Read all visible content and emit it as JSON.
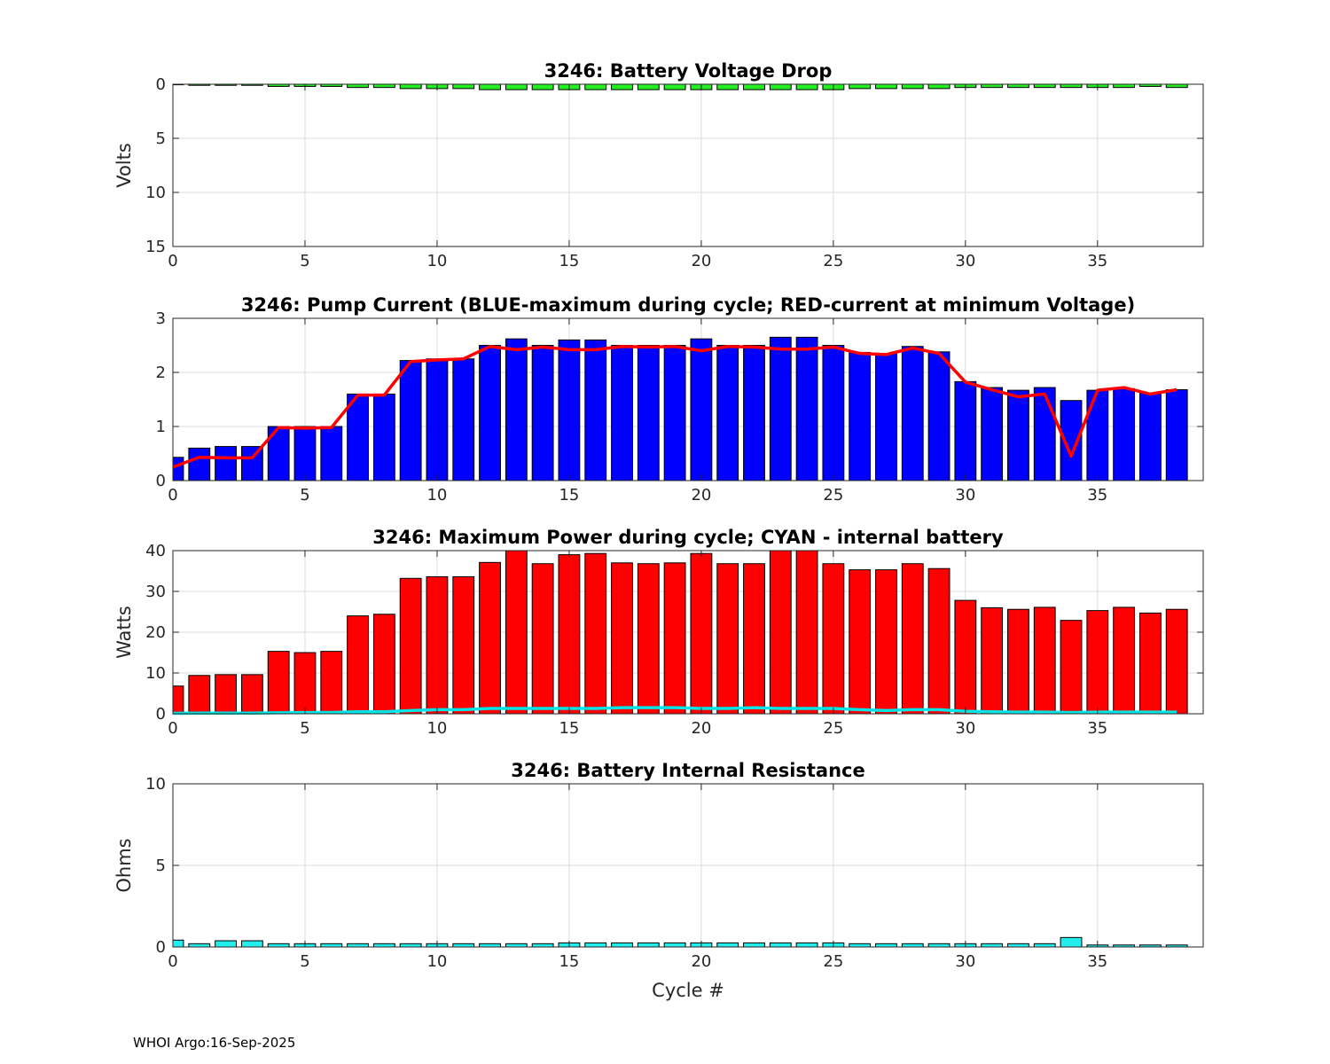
{
  "footer": "WHOI Argo:16-Sep-2025",
  "chart_data": [
    {
      "id": "voltage",
      "type": "bar",
      "title": "3246: Battery Voltage Drop",
      "ylabel": "Volts",
      "xlabel": "",
      "xlim": [
        0,
        39
      ],
      "ylim": [
        0,
        15
      ],
      "y_reversed": true,
      "xticks": [
        0,
        5,
        10,
        15,
        20,
        25,
        30,
        35
      ],
      "yticks": [
        0,
        5,
        10,
        15
      ],
      "grid": true,
      "bar_color": "#22ee22",
      "x": [
        0,
        1,
        2,
        3,
        4,
        5,
        6,
        7,
        8,
        9,
        10,
        11,
        12,
        13,
        14,
        15,
        16,
        17,
        18,
        19,
        20,
        21,
        22,
        23,
        24,
        25,
        26,
        27,
        28,
        29,
        30,
        31,
        32,
        33,
        34,
        35,
        36,
        37,
        38
      ],
      "values": [
        0.05,
        0.1,
        0.1,
        0.1,
        0.2,
        0.2,
        0.2,
        0.3,
        0.3,
        0.4,
        0.4,
        0.4,
        0.5,
        0.5,
        0.5,
        0.5,
        0.5,
        0.5,
        0.5,
        0.5,
        0.5,
        0.5,
        0.5,
        0.5,
        0.5,
        0.5,
        0.4,
        0.4,
        0.4,
        0.4,
        0.3,
        0.3,
        0.3,
        0.3,
        0.3,
        0.3,
        0.3,
        0.2,
        0.3
      ]
    },
    {
      "id": "current",
      "type": "bar",
      "title": "3246: Pump Current (BLUE-maximum during cycle; RED-current at minimum Voltage)",
      "ylabel": "",
      "xlabel": "",
      "xlim": [
        0,
        39
      ],
      "ylim": [
        0,
        3
      ],
      "xticks": [
        0,
        5,
        10,
        15,
        20,
        25,
        30,
        35
      ],
      "yticks": [
        0,
        1,
        2,
        3
      ],
      "grid": true,
      "bar_color": "#0000ff",
      "line_color": "#ff0000",
      "x": [
        0,
        1,
        2,
        3,
        4,
        5,
        6,
        7,
        8,
        9,
        10,
        11,
        12,
        13,
        14,
        15,
        16,
        17,
        18,
        19,
        20,
        21,
        22,
        23,
        24,
        25,
        26,
        27,
        28,
        29,
        30,
        31,
        32,
        33,
        34,
        35,
        36,
        37,
        38
      ],
      "values": [
        0.43,
        0.6,
        0.63,
        0.63,
        1.0,
        1.0,
        1.0,
        1.6,
        1.6,
        2.22,
        2.25,
        2.25,
        2.5,
        2.62,
        2.5,
        2.6,
        2.6,
        2.5,
        2.5,
        2.5,
        2.62,
        2.5,
        2.5,
        2.65,
        2.65,
        2.5,
        2.37,
        2.35,
        2.48,
        2.38,
        1.83,
        1.72,
        1.67,
        1.72,
        1.48,
        1.67,
        1.7,
        1.62,
        1.68
      ],
      "line_values": [
        0.25,
        0.43,
        0.42,
        0.42,
        0.98,
        0.97,
        0.98,
        1.58,
        1.58,
        2.2,
        2.23,
        2.25,
        2.48,
        2.42,
        2.47,
        2.42,
        2.42,
        2.48,
        2.47,
        2.48,
        2.4,
        2.48,
        2.47,
        2.43,
        2.43,
        2.47,
        2.35,
        2.33,
        2.45,
        2.35,
        1.82,
        1.68,
        1.55,
        1.6,
        0.45,
        1.67,
        1.72,
        1.6,
        1.68
      ]
    },
    {
      "id": "power",
      "type": "bar",
      "title": "3246: Maximum Power during cycle; CYAN - internal battery",
      "ylabel": "Watts",
      "xlabel": "",
      "xlim": [
        0,
        39
      ],
      "ylim": [
        0,
        40
      ],
      "xticks": [
        0,
        5,
        10,
        15,
        20,
        25,
        30,
        35
      ],
      "yticks": [
        0,
        10,
        20,
        30,
        40
      ],
      "grid": true,
      "bar_color": "#ff0000",
      "line_color": "#00e5e5",
      "x": [
        0,
        1,
        2,
        3,
        4,
        5,
        6,
        7,
        8,
        9,
        10,
        11,
        12,
        13,
        14,
        15,
        16,
        17,
        18,
        19,
        20,
        21,
        22,
        23,
        24,
        25,
        26,
        27,
        28,
        29,
        30,
        31,
        32,
        33,
        34,
        35,
        36,
        37,
        38
      ],
      "values": [
        6.8,
        9.4,
        9.6,
        9.6,
        15.3,
        15.0,
        15.3,
        24.0,
        24.4,
        33.2,
        33.6,
        33.6,
        37.1,
        40.0,
        36.8,
        39.0,
        39.3,
        37.0,
        36.8,
        37.0,
        39.3,
        36.8,
        36.8,
        40.0,
        40.0,
        36.8,
        35.3,
        35.3,
        36.8,
        35.6,
        27.8,
        26.0,
        25.6,
        26.1,
        22.9,
        25.3,
        26.1,
        24.7,
        25.6
      ],
      "line_values": [
        0.1,
        0.15,
        0.15,
        0.15,
        0.25,
        0.3,
        0.3,
        0.5,
        0.5,
        0.8,
        1.0,
        1.0,
        1.3,
        1.3,
        1.3,
        1.3,
        1.3,
        1.5,
        1.5,
        1.5,
        1.3,
        1.3,
        1.5,
        1.3,
        1.3,
        1.3,
        1.0,
        0.8,
        1.0,
        1.0,
        0.6,
        0.5,
        0.4,
        0.4,
        0.3,
        0.4,
        0.4,
        0.4,
        0.4
      ]
    },
    {
      "id": "resistance",
      "type": "bar",
      "title": "3246: Battery Internal Resistance",
      "ylabel": "Ohms",
      "xlabel": "Cycle #",
      "xlim": [
        0,
        39
      ],
      "ylim": [
        0,
        10
      ],
      "xticks": [
        0,
        5,
        10,
        15,
        20,
        25,
        30,
        35
      ],
      "yticks": [
        0,
        5,
        10
      ],
      "grid": true,
      "bar_color": "#22eeee",
      "x": [
        0,
        1,
        2,
        3,
        4,
        5,
        6,
        7,
        8,
        9,
        10,
        11,
        12,
        13,
        14,
        15,
        16,
        17,
        18,
        19,
        20,
        21,
        22,
        23,
        24,
        25,
        26,
        27,
        28,
        29,
        30,
        31,
        32,
        33,
        34,
        35,
        36,
        37,
        38
      ],
      "values": [
        0.42,
        0.2,
        0.38,
        0.38,
        0.2,
        0.2,
        0.2,
        0.2,
        0.2,
        0.2,
        0.2,
        0.2,
        0.2,
        0.2,
        0.2,
        0.25,
        0.25,
        0.25,
        0.25,
        0.25,
        0.25,
        0.25,
        0.25,
        0.25,
        0.25,
        0.25,
        0.2,
        0.2,
        0.2,
        0.2,
        0.2,
        0.2,
        0.2,
        0.2,
        0.58,
        0.12,
        0.12,
        0.12,
        0.12
      ]
    }
  ]
}
